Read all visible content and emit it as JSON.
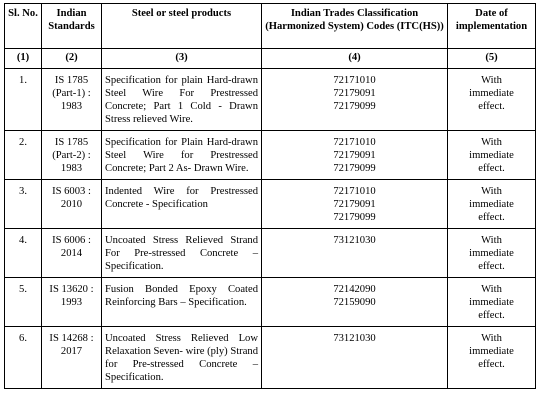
{
  "headers": {
    "sl_no": "Sl. No.",
    "indian_standards": "Indian Standards",
    "products": "Steel or steel products",
    "itc_codes": "Indian Trades Classification (Harmonized System) Codes (ITC(HS))",
    "date": "Date of implementation"
  },
  "column_numbers": [
    "(1)",
    "(2)",
    "(3)",
    "(4)",
    "(5)"
  ],
  "rows": [
    {
      "sl": "1.",
      "standard": "IS 1785 (Part-1) : 1983",
      "product": "Specification for plain Hard-drawn Steel Wire For Prestressed Concrete; Part 1 Cold - Drawn Stress relieved Wire.",
      "codes": [
        "72171010",
        "72179091",
        "72179099"
      ],
      "date": [
        "With",
        "immediate",
        "effect."
      ]
    },
    {
      "sl": "2.",
      "standard": "IS 1785 (Part-2) : 1983",
      "product": "Specification for Plain Hard-drawn Steel Wire for Prestressed Concrete; Part 2 As- Drawn Wire.",
      "codes": [
        "72171010",
        "72179091",
        "72179099"
      ],
      "date": [
        "With",
        "immediate",
        "effect."
      ]
    },
    {
      "sl": "3.",
      "standard": "IS 6003 : 2010",
      "product": "Indented Wire for Prestressed Concrete - Specification",
      "codes": [
        "72171010",
        "72179091",
        "72179099"
      ],
      "date": [
        "With",
        "immediate",
        "effect."
      ]
    },
    {
      "sl": "4.",
      "standard": "IS 6006 : 2014",
      "product": "Uncoated Stress Relieved Strand For Pre-stressed Concrete – Specification.",
      "codes": [
        "73121030"
      ],
      "date": [
        "With",
        "immediate",
        "effect."
      ]
    },
    {
      "sl": "5.",
      "standard": "IS 13620 : 1993",
      "product": "Fusion Bonded Epoxy Coated Reinforcing Bars – Specification.",
      "codes": [
        "72142090",
        "72159090"
      ],
      "date": [
        "With",
        "immediate",
        "effect."
      ]
    },
    {
      "sl": "6.",
      "standard": "IS 14268 : 2017",
      "product": "Uncoated Stress Relieved Low Relaxation Seven- wire (ply) Strand for Pre-stressed Concrete – Specification.",
      "codes": [
        "73121030"
      ],
      "date": [
        "With",
        "immediate",
        "effect."
      ]
    }
  ]
}
